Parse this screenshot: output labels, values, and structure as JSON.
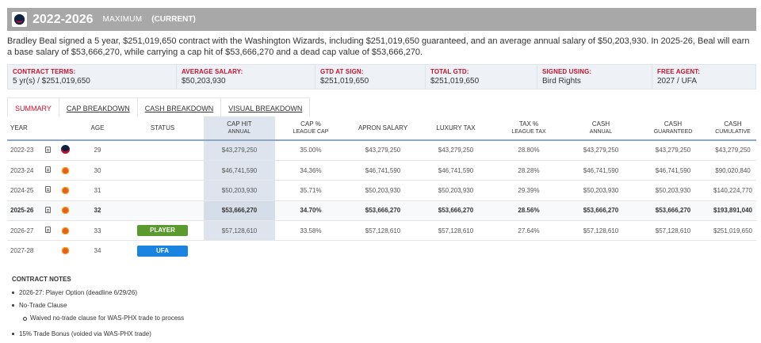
{
  "header": {
    "years": "2022-2026",
    "type": "MAXIMUM",
    "status": "(CURRENT)",
    "team_icon": "wizards-logo"
  },
  "description": "Bradley Beal signed a 5 year, $251,019,650 contract with the Washington Wizards, including $251,019,650 guaranteed, and an average annual salary of $50,203,930. In 2025-26, Beal will earn a base salary of $53,666,270, while carrying a cap hit of $53,666,270 and a dead cap value of $53,666,270.",
  "terms": [
    {
      "label": "CONTRACT TERMS:",
      "value": "5 yr(s) / $251,019,650"
    },
    {
      "label": "AVERAGE SALARY:",
      "value": "$50,203,930"
    },
    {
      "label": "GTD AT SIGN:",
      "value": "$251,019,650"
    },
    {
      "label": "TOTAL GTD:",
      "value": "$251,019,650"
    },
    {
      "label": "SIGNED USING:",
      "value": "Bird Rights"
    },
    {
      "label": "FREE AGENT:",
      "value": "2027 / UFA"
    }
  ],
  "tabs": [
    "SUMMARY",
    "CAP BREAKDOWN",
    "CASH BREAKDOWN",
    "VISUAL BREAKDOWN"
  ],
  "columns": {
    "year": "YEAR",
    "age": "AGE",
    "status": "STATUS",
    "cap_hit": {
      "main": "CAP HIT",
      "sub": "ANNUAL"
    },
    "cap_pct": {
      "main": "CAP %",
      "sub": "LEAGUE CAP"
    },
    "apron": "APRON SALARY",
    "luxury": "LUXURY TAX",
    "tax_pct": {
      "main": "TAX %",
      "sub": "LEAGUE TAX"
    },
    "cash_annual": {
      "main": "CASH",
      "sub": "ANNUAL"
    },
    "cash_gtd": {
      "main": "CASH",
      "sub": "GUARANTEED"
    },
    "cash_cum": {
      "main": "CASH",
      "sub": "CUMULATIVE"
    }
  },
  "rows": [
    {
      "year": "2022-23",
      "team": "was",
      "age": "29",
      "status": "",
      "cap_hit": "$43,279,250",
      "cap_pct": "35.00%",
      "apron": "$43,279,250",
      "luxury": "$43,279,250",
      "tax_pct": "28.80%",
      "cash_annual": "$43,279,250",
      "cash_gtd": "$43,279,250",
      "cash_cum": "$43,279,250"
    },
    {
      "year": "2023-24",
      "team": "phx",
      "age": "30",
      "status": "",
      "cap_hit": "$46,741,590",
      "cap_pct": "34.36%",
      "apron": "$46,741,590",
      "luxury": "$46,741,590",
      "tax_pct": "28.28%",
      "cash_annual": "$46,741,590",
      "cash_gtd": "$46,741,590",
      "cash_cum": "$90,020,840"
    },
    {
      "year": "2024-25",
      "team": "phx",
      "age": "31",
      "status": "",
      "cap_hit": "$50,203,930",
      "cap_pct": "35.71%",
      "apron": "$50,203,930",
      "luxury": "$50,203,930",
      "tax_pct": "29.39%",
      "cash_annual": "$50,203,930",
      "cash_gtd": "$50,203,930",
      "cash_cum": "$140,224,770"
    },
    {
      "year": "2025-26",
      "team": "phx",
      "age": "32",
      "status": "",
      "cap_hit": "$53,666,270",
      "cap_pct": "34.70%",
      "apron": "$53,666,270",
      "luxury": "$53,666,270",
      "tax_pct": "28.56%",
      "cash_annual": "$53,666,270",
      "cash_gtd": "$53,666,270",
      "cash_cum": "$193,891,040"
    },
    {
      "year": "2026-27",
      "team": "phx",
      "age": "33",
      "status": "PLAYER",
      "cap_hit": "$57,128,610",
      "cap_pct": "33.58%",
      "apron": "$57,128,610",
      "luxury": "$57,128,610",
      "tax_pct": "27.64%",
      "cash_annual": "$57,128,610",
      "cash_gtd": "$57,128,610",
      "cash_cum": "$251,019,650"
    },
    {
      "year": "2027-28",
      "team": "phx",
      "age": "34",
      "status": "UFA",
      "cap_hit": "",
      "cap_pct": "",
      "apron": "",
      "luxury": "",
      "tax_pct": "",
      "cash_annual": "",
      "cash_gtd": "",
      "cash_cum": ""
    }
  ],
  "notes": {
    "title": "CONTRACT NOTES",
    "items": [
      "2026-27: Player Option (deadline 6/29/26)",
      "No-Trade Clause",
      "Waived no-trade clause for WAS-PHX trade to process",
      "15% Trade Bonus (voided via WAS-PHX trade)"
    ]
  },
  "colors": {
    "accent": "#c8102e",
    "header_bg": "#a8a8a8",
    "player_badge": "#5a9a2e",
    "ufa_badge": "#1b84e0"
  }
}
